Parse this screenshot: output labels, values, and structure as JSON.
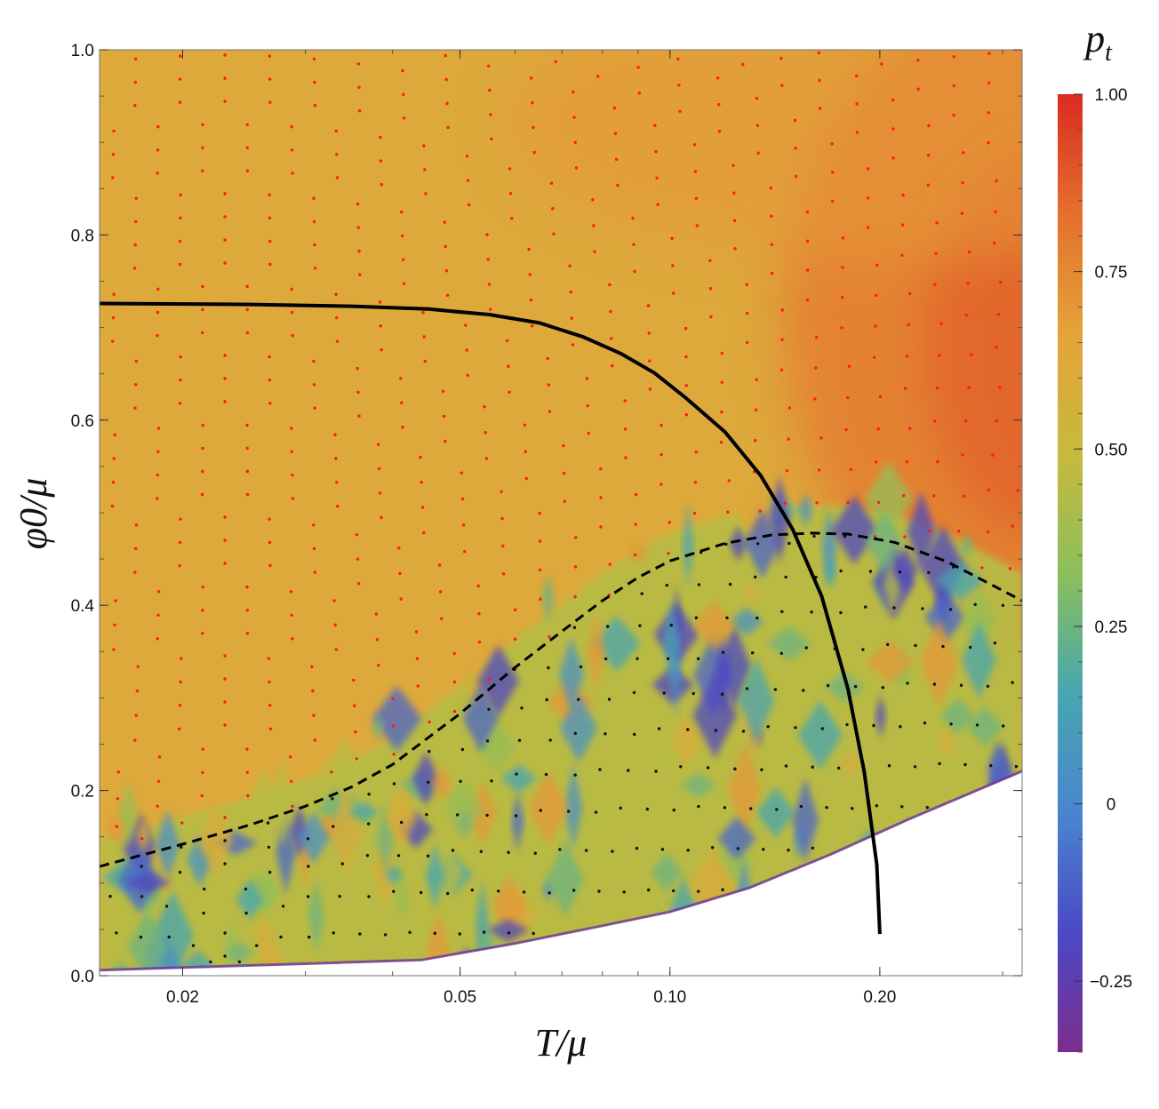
{
  "chart_data": {
    "type": "heatmap",
    "title": "",
    "xlabel": "T/μ",
    "ylabel": "φ0/μ",
    "x_scale": "log",
    "xlim": [
      0.0152,
      0.32
    ],
    "ylim": [
      0.0,
      1.0
    ],
    "x_ticks": [
      {
        "value": 0.02,
        "label": "0.02"
      },
      {
        "value": 0.05,
        "label": "0.05"
      },
      {
        "value": 0.1,
        "label": "0.10"
      },
      {
        "value": 0.2,
        "label": "0.20"
      }
    ],
    "y_ticks": [
      {
        "value": 0.0,
        "label": "0.0"
      },
      {
        "value": 0.2,
        "label": "0.2"
      },
      {
        "value": 0.4,
        "label": "0.4"
      },
      {
        "value": 0.6,
        "label": "0.6"
      },
      {
        "value": 0.8,
        "label": "0.8"
      },
      {
        "value": 1.0,
        "label": "1.0"
      }
    ],
    "colorbar": {
      "label": "p_t",
      "range": [
        -0.35,
        1.0
      ],
      "ticks": [
        {
          "value": 1.0,
          "label": "1.00"
        },
        {
          "value": 0.75,
          "label": "0.75"
        },
        {
          "value": 0.5,
          "label": "0.50"
        },
        {
          "value": 0.25,
          "label": "0.25"
        },
        {
          "value": 0.0,
          "label": "0"
        },
        {
          "value": -0.25,
          "label": "−0.25"
        }
      ],
      "colors": [
        "#7b2e8c",
        "#4a49c6",
        "#4a86cf",
        "#47a6b0",
        "#8cbf5a",
        "#c7b93e",
        "#e5a33a",
        "#e4702c",
        "#d92b22"
      ]
    },
    "lower_boundary": {
      "x": [
        0.0152,
        0.02,
        0.03,
        0.044,
        0.06,
        0.08,
        0.1,
        0.13,
        0.17,
        0.22,
        0.32
      ],
      "y": [
        0.005,
        0.008,
        0.012,
        0.016,
        0.034,
        0.053,
        0.068,
        0.094,
        0.13,
        0.168,
        0.22
      ]
    },
    "series": [
      {
        "style": "solid",
        "x": [
          0.0152,
          0.025,
          0.035,
          0.045,
          0.055,
          0.065,
          0.075,
          0.085,
          0.095,
          0.105,
          0.12,
          0.135,
          0.15,
          0.165,
          0.18,
          0.19,
          0.198,
          0.2
        ],
        "y": [
          0.726,
          0.725,
          0.723,
          0.72,
          0.714,
          0.705,
          0.69,
          0.672,
          0.651,
          0.625,
          0.587,
          0.54,
          0.482,
          0.41,
          0.31,
          0.22,
          0.12,
          0.045
        ]
      },
      {
        "style": "dashed",
        "x": [
          0.0152,
          0.02,
          0.025,
          0.03,
          0.035,
          0.04,
          0.05,
          0.06,
          0.07,
          0.08,
          0.09,
          0.1,
          0.12,
          0.14,
          0.16,
          0.18,
          0.21,
          0.25,
          0.32
        ],
        "y": [
          0.118,
          0.142,
          0.163,
          0.183,
          0.204,
          0.228,
          0.283,
          0.333,
          0.372,
          0.405,
          0.43,
          0.448,
          0.467,
          0.476,
          0.478,
          0.477,
          0.468,
          0.447,
          0.405
        ]
      }
    ],
    "marker_colors": {
      "above": "#ff1a1a",
      "below": "#111111"
    }
  }
}
